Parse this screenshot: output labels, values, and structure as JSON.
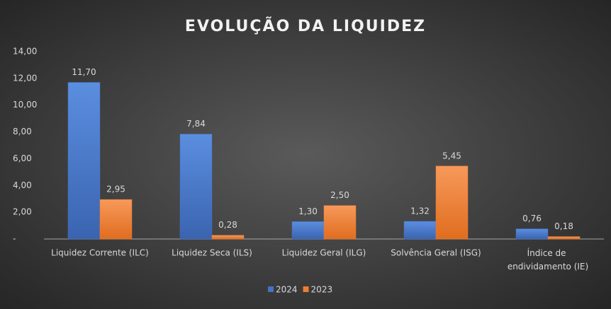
{
  "chart_data": {
    "type": "bar",
    "title": "EVOLUÇÃO DA LIQUIDEZ",
    "categories": [
      "Liquidez Corrente (ILC)",
      "Liquidez Seca (ILS)",
      "Liquidez Geral (ILG)",
      "Solvência Geral (ISG)",
      "Índice de endividamento (IE)"
    ],
    "series": [
      {
        "name": "2024",
        "color": "#4472c4",
        "values": [
          11.7,
          7.84,
          1.3,
          1.32,
          0.76
        ],
        "value_labels": [
          "11,70",
          "7,84",
          "1,30",
          "1,32",
          "0,76"
        ]
      },
      {
        "name": "2023",
        "color": "#ed7d31",
        "values": [
          2.95,
          0.28,
          2.5,
          5.45,
          0.18
        ],
        "value_labels": [
          "2,95",
          "0,28",
          "2,50",
          "5,45",
          "0,18"
        ]
      }
    ],
    "ylim": [
      0,
      14
    ],
    "yticks": [
      {
        "value": 0,
        "label": "-"
      },
      {
        "value": 2,
        "label": "2,00"
      },
      {
        "value": 4,
        "label": "4,00"
      },
      {
        "value": 6,
        "label": "6,00"
      },
      {
        "value": 8,
        "label": "8,00"
      },
      {
        "value": 10,
        "label": "10,00"
      },
      {
        "value": 12,
        "label": "12,00"
      },
      {
        "value": 14,
        "label": "14,00"
      }
    ],
    "legend": "bottom"
  }
}
